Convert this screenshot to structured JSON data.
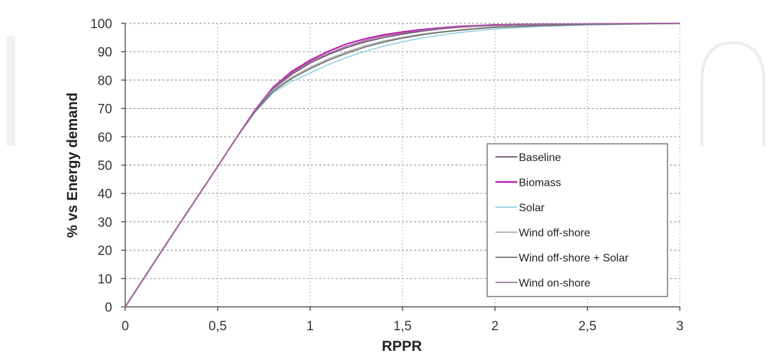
{
  "chart_data": {
    "type": "line",
    "title": "",
    "xlabel": "RPPR",
    "ylabel": "% vs Energy demand",
    "xlim": [
      0,
      3
    ],
    "ylim": [
      0,
      100
    ],
    "grid": true,
    "legend_position": "lower-right",
    "x_ticks": [
      "0",
      "0,5",
      "1",
      "1,5",
      "2",
      "2,5",
      "3"
    ],
    "y_ticks": [
      "0",
      "10",
      "20",
      "30",
      "40",
      "50",
      "60",
      "70",
      "80",
      "90",
      "100"
    ],
    "x": [
      0,
      0.25,
      0.5,
      0.6,
      0.7,
      0.8,
      0.9,
      1.0,
      1.1,
      1.2,
      1.3,
      1.4,
      1.5,
      1.6,
      1.7,
      1.8,
      1.9,
      2.0,
      2.25,
      2.5,
      2.75,
      3.0
    ],
    "series": [
      {
        "name": "Baseline",
        "color": "#6a4a6a",
        "values": [
          0,
          25,
          49.5,
          59.5,
          69,
          77,
          82,
          86,
          89,
          91.5,
          93.5,
          95,
          96.2,
          97.2,
          98,
          98.6,
          99,
          99.3,
          99.6,
          99.8,
          99.9,
          100
        ]
      },
      {
        "name": "Biomass",
        "color": "#c020b0",
        "values": [
          0,
          25,
          49.5,
          59.5,
          69.2,
          77.5,
          83,
          87,
          90.2,
          92.8,
          94.6,
          96,
          97,
          97.8,
          98.4,
          98.9,
          99.2,
          99.5,
          99.7,
          99.8,
          99.9,
          100
        ]
      },
      {
        "name": "Solar",
        "color": "#8fd0e0",
        "values": [
          0,
          25,
          49.5,
          59.5,
          68.5,
          75.5,
          79.5,
          82.5,
          85.5,
          88,
          90.2,
          92,
          93.5,
          94.8,
          95.8,
          96.7,
          97.4,
          98,
          98.9,
          99.4,
          99.7,
          100
        ]
      },
      {
        "name": "Wind off-shore",
        "color": "#a8a8a8",
        "values": [
          0,
          25,
          49.5,
          59.5,
          68.8,
          76.5,
          81,
          84.5,
          87.5,
          90,
          92.2,
          93.8,
          95.1,
          96.2,
          97,
          97.7,
          98.3,
          98.8,
          99.3,
          99.6,
          99.8,
          100
        ]
      },
      {
        "name": "Wind off-shore + Solar",
        "color": "#707070",
        "values": [
          0,
          25,
          49.5,
          59.5,
          68.7,
          76,
          80.5,
          84,
          87,
          89.5,
          91.7,
          93.4,
          94.8,
          95.9,
          96.8,
          97.5,
          98.1,
          98.6,
          99.2,
          99.6,
          99.8,
          100
        ]
      },
      {
        "name": "Wind on-shore",
        "color": "#9a6a9a",
        "values": [
          0,
          25,
          49.5,
          59.5,
          69,
          77.2,
          82.5,
          86.5,
          89.5,
          92,
          94,
          95.5,
          96.6,
          97.5,
          98.2,
          98.7,
          99.1,
          99.4,
          99.7,
          99.8,
          99.9,
          100
        ]
      }
    ]
  }
}
